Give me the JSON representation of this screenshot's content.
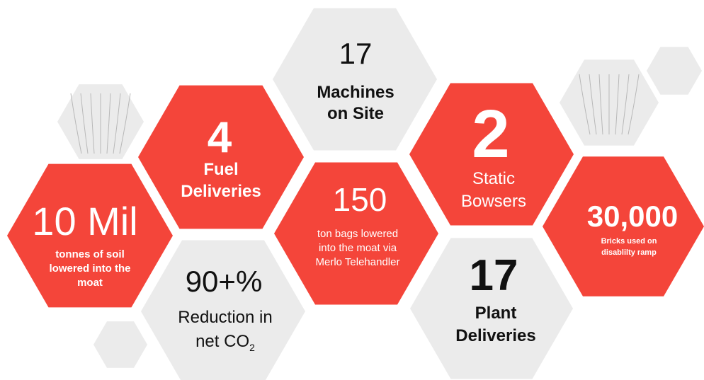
{
  "hexagons": {
    "machines": {
      "value": "17",
      "label": [
        "Machines",
        "on Site"
      ]
    },
    "fuel": {
      "value": "4",
      "label": [
        "Fuel",
        "Deliveries"
      ]
    },
    "bowsers": {
      "value": "2",
      "label": [
        "Static",
        "Bowsers"
      ]
    },
    "soil": {
      "value": "10 Mil",
      "label": [
        "tonnes of soil",
        "lowered into the",
        "moat"
      ]
    },
    "bags": {
      "value": "150",
      "label": [
        "ton bags lowered",
        "into the moat via",
        "Merlo Telehandler"
      ]
    },
    "bricks": {
      "value": "30,000",
      "label": [
        "Bricks used on",
        "disablilty ramp"
      ]
    },
    "co2": {
      "value": "90+%",
      "label": [
        "Reduction in",
        "net CO"
      ],
      "subscript": "2"
    },
    "plant": {
      "value": "17",
      "label": [
        "Plant",
        "Deliveries"
      ]
    }
  }
}
